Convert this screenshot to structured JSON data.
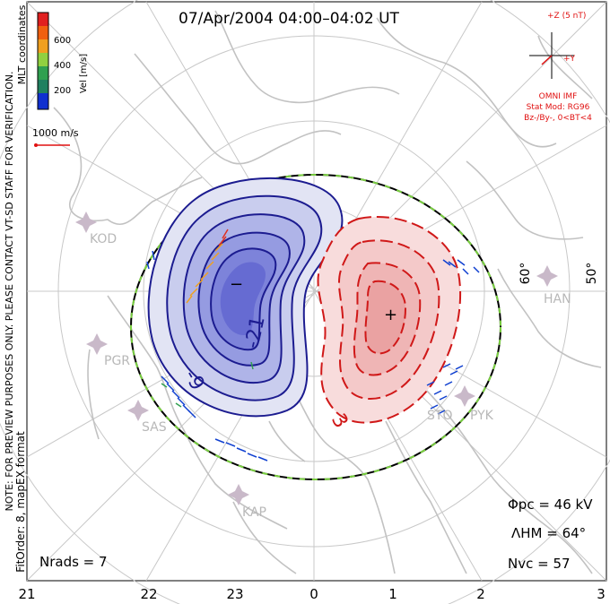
{
  "title": "07/Apr/2004 04:00–04:02 UT",
  "note_line1": "NOTE: FOR PREVIEW PURPOSES ONLY. PLEASE CONTACT VT-SD STAFF FOR VERIFICATION.",
  "note_line2": "FitOrder: 8, mapEX format",
  "mlt_label": "MLT coordinates",
  "colorbar": {
    "label": "Vel [m/s]",
    "ticks": [
      "600",
      "400",
      "200"
    ],
    "colors": [
      "#e02020",
      "#f06010",
      "#f0a020",
      "#90d040",
      "#30a050",
      "#208060",
      "#1030d0"
    ]
  },
  "vector_scale": "1000 m/s",
  "imf": {
    "z_label": "+Z (5 nT)",
    "y_label": "+Y",
    "source": "OMNI IMF",
    "model": "Stat Mod: RG96",
    "condition": "Bz-/By-, 0<BT<4"
  },
  "lat_labels": [
    "60°",
    "50°"
  ],
  "mlt_ticks": [
    "21",
    "22",
    "23",
    "0",
    "1",
    "2",
    "3"
  ],
  "stations": [
    "KOD",
    "PGR",
    "SAS",
    "KAP",
    "HAN",
    "STO",
    "PYK"
  ],
  "contour_labels": [
    "-21",
    "-9",
    "3"
  ],
  "min_marker": "−",
  "max_marker": "+",
  "stats": {
    "phi_pc": "Φpc = 46 kV",
    "lambda_hm": "ΛHM = 64°",
    "n_vc": "Nvc = 57",
    "n_rads": "Nrads = 7"
  }
}
